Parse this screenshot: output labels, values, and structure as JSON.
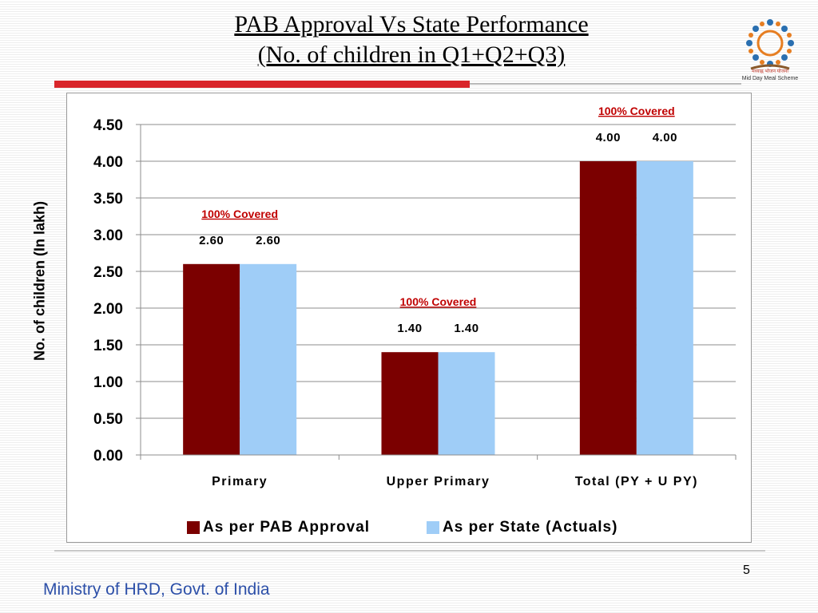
{
  "slide": {
    "title_line1": "PAB Approval  Vs State Performance",
    "title_line2": "(No. of children in Q1+Q2+Q3)",
    "footer": "Ministry of HRD, Govt. of India",
    "page_number": "5",
    "logo_caption_hindi": "मध्याह्न भोजन योजना",
    "logo_caption_english": "Mid Day Meal Scheme"
  },
  "chart_data": {
    "type": "bar",
    "title": "",
    "xlabel": "",
    "ylabel": "No. of children (In lakh)",
    "ylim": [
      0,
      4.5
    ],
    "y_ticks": [
      "0.00",
      "0.50",
      "1.00",
      "1.50",
      "2.00",
      "2.50",
      "3.00",
      "3.50",
      "4.00",
      "4.50"
    ],
    "grid": true,
    "legend_position": "bottom",
    "categories": [
      "Primary",
      "Upper Primary",
      "Total (PY + U PY)"
    ],
    "series": [
      {
        "name": "As per PAB Approval",
        "values": [
          2.6,
          1.4,
          4.0
        ],
        "labels": [
          "2.60",
          "1.40",
          "4.00"
        ],
        "color": "#7b0000"
      },
      {
        "name": "As per State (Actuals)",
        "values": [
          2.6,
          1.4,
          4.0
        ],
        "labels": [
          "2.60",
          "1.40",
          "4.00"
        ],
        "color": "#9fcdf7"
      }
    ],
    "annotations": [
      "100% Covered",
      "100% Covered",
      "100% Covered"
    ],
    "annotation_color": "#c00000"
  }
}
